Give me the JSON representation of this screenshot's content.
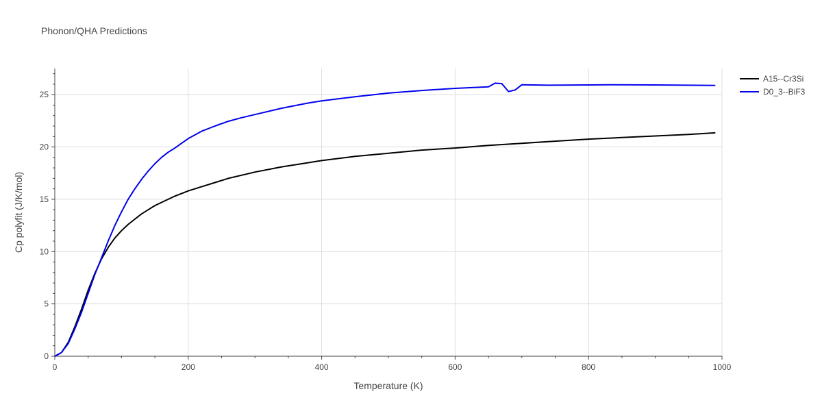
{
  "chart_data": {
    "type": "line",
    "title": "Phonon/QHA Predictions",
    "xlabel": "Temperature (K)",
    "ylabel": "Cp polyfit (J/K/mol)",
    "xlim": [
      0,
      1000
    ],
    "ylim": [
      0,
      27.5
    ],
    "xticks": [
      0,
      200,
      400,
      600,
      800,
      1000
    ],
    "yticks": [
      0,
      5,
      10,
      15,
      20,
      25
    ],
    "grid": true,
    "legend": "top-right",
    "series": [
      {
        "name": "A15--Cr3Si",
        "color": "#000000",
        "x": [
          0,
          10,
          20,
          30,
          40,
          50,
          60,
          70,
          80,
          90,
          100,
          110,
          120,
          130,
          140,
          150,
          160,
          170,
          180,
          200,
          220,
          240,
          260,
          280,
          300,
          340,
          380,
          400,
          450,
          500,
          550,
          600,
          650,
          700,
          750,
          800,
          850,
          900,
          950,
          990
        ],
        "y": [
          0,
          0.35,
          1.3,
          2.8,
          4.5,
          6.3,
          7.9,
          9.3,
          10.4,
          11.3,
          12.0,
          12.6,
          13.1,
          13.6,
          14.0,
          14.4,
          14.7,
          15.0,
          15.3,
          15.8,
          16.2,
          16.6,
          17.0,
          17.3,
          17.6,
          18.1,
          18.5,
          18.7,
          19.1,
          19.4,
          19.7,
          19.9,
          20.15,
          20.35,
          20.55,
          20.75,
          20.9,
          21.05,
          21.2,
          21.35
        ]
      },
      {
        "name": "D0_3--BiF3",
        "color": "#0000ee",
        "x": [
          0,
          10,
          20,
          30,
          40,
          50,
          60,
          70,
          80,
          90,
          100,
          110,
          120,
          130,
          140,
          150,
          160,
          170,
          180,
          200,
          220,
          240,
          260,
          280,
          300,
          340,
          380,
          400,
          450,
          500,
          550,
          600,
          650,
          660,
          670,
          680,
          690,
          700,
          740,
          800,
          840,
          900,
          990
        ],
        "y": [
          0,
          0.35,
          1.2,
          2.6,
          4.2,
          6.0,
          7.8,
          9.4,
          11.0,
          12.5,
          13.8,
          15.0,
          16.0,
          16.9,
          17.7,
          18.4,
          19.0,
          19.5,
          19.9,
          20.8,
          21.5,
          22.0,
          22.45,
          22.8,
          23.1,
          23.7,
          24.2,
          24.4,
          24.8,
          25.15,
          25.4,
          25.6,
          25.75,
          26.1,
          26.05,
          25.3,
          25.45,
          25.95,
          25.9,
          25.93,
          25.95,
          25.93,
          25.88
        ]
      }
    ]
  }
}
